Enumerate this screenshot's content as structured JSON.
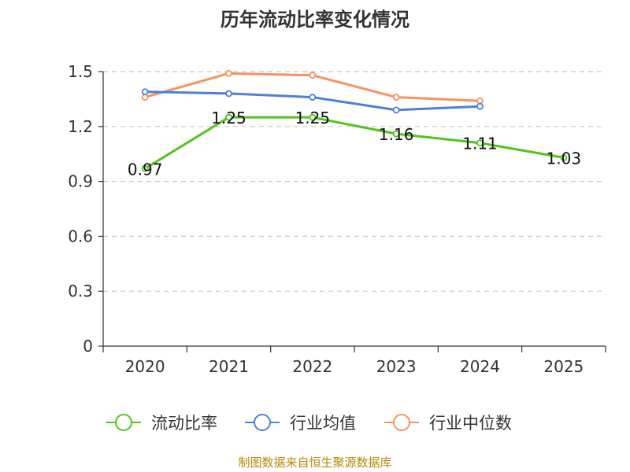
{
  "chart_data": {
    "type": "line",
    "title": "历年流动比率变化情况",
    "categories": [
      "2020",
      "2021",
      "2022",
      "2023",
      "2024",
      "2025"
    ],
    "ylim": [
      0,
      1.5
    ],
    "yticks": [
      "0",
      "0.3",
      "0.6",
      "0.9",
      "1.2",
      "1.5"
    ],
    "ytick_values": [
      0,
      0.3,
      0.6,
      0.9,
      1.2,
      1.5
    ],
    "grid": true,
    "legend_position": "bottom",
    "series": [
      {
        "name": "流动比率",
        "color": "#52c41a",
        "values": [
          0.97,
          1.25,
          1.25,
          1.16,
          1.11,
          1.03
        ],
        "labels": [
          "0.97",
          "1.25",
          "1.25",
          "1.16",
          "1.11",
          "1.03"
        ]
      },
      {
        "name": "行业均值",
        "color": "#4e7fdb",
        "values": [
          1.39,
          1.38,
          1.36,
          1.29,
          1.31,
          null
        ]
      },
      {
        "name": "行业中位数",
        "color": "#f5935f",
        "values": [
          1.36,
          1.49,
          1.48,
          1.36,
          1.34,
          null
        ]
      }
    ],
    "source": "制图数据来自恒生聚源数据库"
  }
}
